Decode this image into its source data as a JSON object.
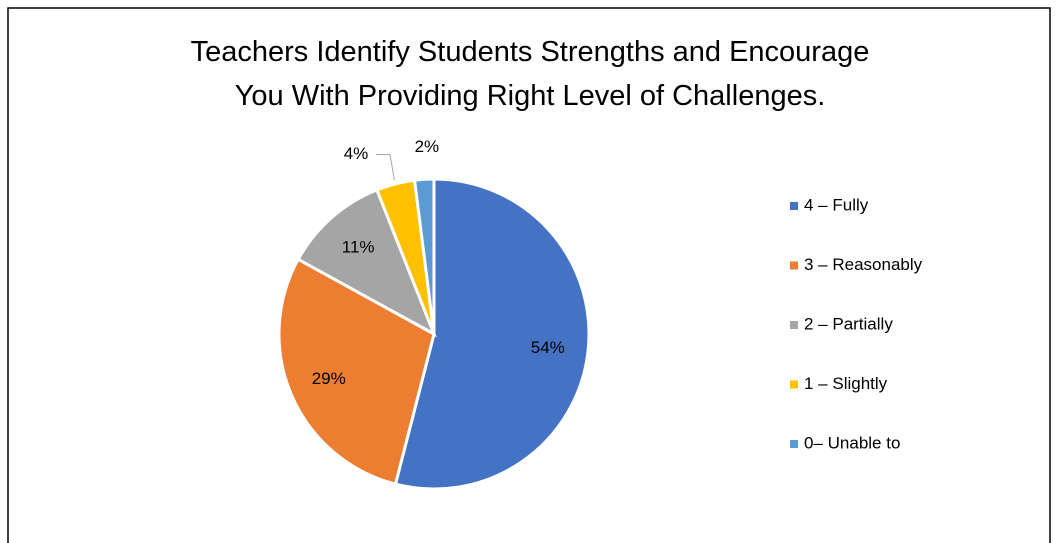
{
  "chart_data": {
    "type": "pie",
    "title": "Teachers Identify Students Strengths and Encourage You With Providing Right Level of Challenges.",
    "categories": [
      "4 – Fully",
      "3 – Reasonably",
      "2 – Partially",
      "1 – Slightly",
      "0– Unable to"
    ],
    "values": [
      54,
      29,
      11,
      4,
      2
    ],
    "value_labels": [
      "54%",
      "29%",
      "11%",
      "4%",
      "2%"
    ],
    "colors": [
      "#4472c4",
      "#ed7d31",
      "#a5a5a5",
      "#ffc000",
      "#5b9bd5"
    ],
    "legend": "right"
  }
}
